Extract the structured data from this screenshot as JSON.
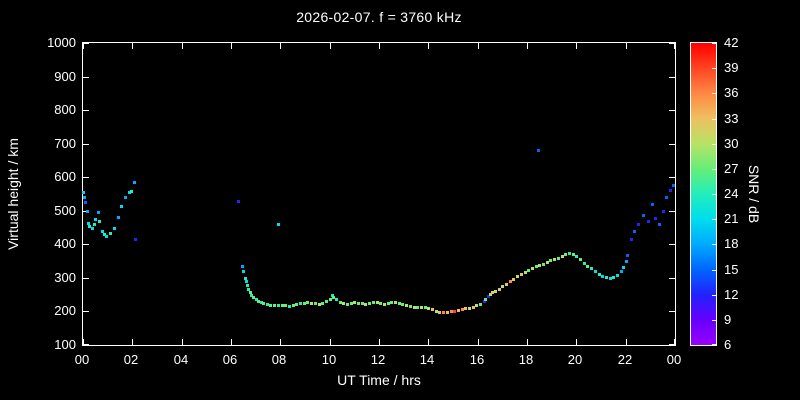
{
  "title": "2026-02-07. f = 3760 kHz",
  "colors": {
    "background": "#000000",
    "axes": "#ffffff",
    "text": "#ffffff"
  },
  "chart_data": {
    "type": "scatter",
    "title": "2026-02-07. f = 3760 kHz",
    "xlabel": "UT Time / hrs",
    "ylabel": "Virtual height / km",
    "colorbar_label": "SNR / dB",
    "xlim": [
      0,
      24
    ],
    "ylim": [
      100,
      1000
    ],
    "x_tick_labels": [
      "00",
      "02",
      "04",
      "06",
      "08",
      "10",
      "12",
      "14",
      "16",
      "18",
      "20",
      "22",
      "00"
    ],
    "x_tick_values": [
      0,
      2,
      4,
      6,
      8,
      10,
      12,
      14,
      16,
      18,
      20,
      22,
      24
    ],
    "y_tick_values": [
      100,
      200,
      300,
      400,
      500,
      600,
      700,
      800,
      900,
      1000
    ],
    "snr_tick_values": [
      6,
      9,
      12,
      15,
      18,
      21,
      24,
      27,
      30,
      33,
      36,
      39,
      42
    ],
    "snr_range": [
      6,
      42
    ],
    "grid": false,
    "colormap": [
      {
        "snr": 6,
        "color": "#9900ff"
      },
      {
        "snr": 9,
        "color": "#6600ff"
      },
      {
        "snr": 12,
        "color": "#2222ff"
      },
      {
        "snr": 15,
        "color": "#0066ff"
      },
      {
        "snr": 18,
        "color": "#00aaff"
      },
      {
        "snr": 21,
        "color": "#00ddee"
      },
      {
        "snr": 24,
        "color": "#22eebb"
      },
      {
        "snr": 27,
        "color": "#66ee77"
      },
      {
        "snr": 30,
        "color": "#b8e266"
      },
      {
        "snr": 33,
        "color": "#eec060"
      },
      {
        "snr": 36,
        "color": "#ff8844"
      },
      {
        "snr": 39,
        "color": "#ff4422"
      },
      {
        "snr": 42,
        "color": "#ff0000"
      }
    ],
    "points": [
      [
        0.0,
        555,
        21
      ],
      [
        0.05,
        540,
        18
      ],
      [
        0.1,
        525,
        15
      ],
      [
        0.15,
        500,
        18
      ],
      [
        0.2,
        465,
        21
      ],
      [
        0.25,
        455,
        24
      ],
      [
        0.35,
        450,
        21
      ],
      [
        0.45,
        460,
        24
      ],
      [
        0.5,
        475,
        21
      ],
      [
        0.6,
        495,
        18
      ],
      [
        0.65,
        470,
        24
      ],
      [
        0.75,
        440,
        21
      ],
      [
        0.85,
        430,
        24
      ],
      [
        0.95,
        425,
        21
      ],
      [
        1.1,
        435,
        24
      ],
      [
        1.25,
        450,
        21
      ],
      [
        1.4,
        480,
        18
      ],
      [
        1.55,
        515,
        21
      ],
      [
        1.7,
        540,
        18
      ],
      [
        1.85,
        555,
        21
      ],
      [
        1.95,
        560,
        24
      ],
      [
        2.05,
        585,
        18
      ],
      [
        2.1,
        415,
        12
      ],
      [
        6.3,
        530,
        12
      ],
      [
        6.45,
        335,
        18
      ],
      [
        6.5,
        320,
        21
      ],
      [
        6.55,
        300,
        24
      ],
      [
        6.6,
        290,
        21
      ],
      [
        6.65,
        278,
        24
      ],
      [
        6.7,
        268,
        24
      ],
      [
        6.75,
        258,
        27
      ],
      [
        6.8,
        250,
        24
      ],
      [
        6.9,
        242,
        27
      ],
      [
        7.0,
        236,
        24
      ],
      [
        7.1,
        232,
        27
      ],
      [
        7.2,
        228,
        24
      ],
      [
        7.9,
        460,
        21
      ],
      [
        7.3,
        226,
        27
      ],
      [
        7.45,
        222,
        24
      ],
      [
        7.6,
        220,
        27
      ],
      [
        7.75,
        219,
        27
      ],
      [
        7.9,
        218,
        24
      ],
      [
        8.05,
        218,
        27
      ],
      [
        8.2,
        220,
        27
      ],
      [
        8.35,
        216,
        24
      ],
      [
        8.5,
        218,
        27
      ],
      [
        8.65,
        221,
        27
      ],
      [
        8.8,
        224,
        24
      ],
      [
        8.95,
        226,
        27
      ],
      [
        9.1,
        228,
        27
      ],
      [
        9.25,
        226,
        30
      ],
      [
        9.4,
        224,
        27
      ],
      [
        9.55,
        222,
        30
      ],
      [
        9.7,
        226,
        27
      ],
      [
        9.85,
        230,
        27
      ],
      [
        10.0,
        236,
        27
      ],
      [
        10.1,
        250,
        24
      ],
      [
        10.15,
        244,
        27
      ],
      [
        10.25,
        238,
        24
      ],
      [
        10.4,
        228,
        27
      ],
      [
        10.55,
        224,
        30
      ],
      [
        10.7,
        222,
        27
      ],
      [
        10.85,
        224,
        27
      ],
      [
        11.0,
        227,
        30
      ],
      [
        11.15,
        226,
        27
      ],
      [
        11.3,
        224,
        27
      ],
      [
        11.45,
        222,
        30
      ],
      [
        11.6,
        224,
        27
      ],
      [
        11.75,
        227,
        27
      ],
      [
        11.9,
        228,
        30
      ],
      [
        12.05,
        226,
        27
      ],
      [
        12.2,
        223,
        30
      ],
      [
        12.35,
        224,
        27
      ],
      [
        12.5,
        227,
        27
      ],
      [
        12.65,
        228,
        30
      ],
      [
        12.8,
        226,
        27
      ],
      [
        12.95,
        222,
        27
      ],
      [
        13.1,
        219,
        30
      ],
      [
        13.25,
        216,
        27
      ],
      [
        13.4,
        214,
        30
      ],
      [
        13.55,
        212,
        27
      ],
      [
        13.7,
        213,
        30
      ],
      [
        13.85,
        214,
        27
      ],
      [
        14.0,
        210,
        30
      ],
      [
        14.15,
        206,
        33
      ],
      [
        14.3,
        202,
        30
      ],
      [
        14.45,
        199,
        33
      ],
      [
        14.6,
        197,
        36
      ],
      [
        14.75,
        199,
        33
      ],
      [
        14.9,
        200,
        36
      ],
      [
        15.05,
        202,
        39
      ],
      [
        15.2,
        204,
        33
      ],
      [
        15.35,
        207,
        36
      ],
      [
        15.5,
        209,
        33
      ],
      [
        15.65,
        211,
        30
      ],
      [
        15.8,
        214,
        33
      ],
      [
        15.95,
        218,
        30
      ],
      [
        16.1,
        222,
        27
      ],
      [
        16.25,
        230,
        9
      ],
      [
        16.3,
        238,
        27
      ],
      [
        16.4,
        246,
        12
      ],
      [
        16.5,
        252,
        30
      ],
      [
        16.6,
        258,
        33
      ],
      [
        16.7,
        262,
        30
      ],
      [
        16.85,
        268,
        33
      ],
      [
        17.0,
        275,
        30
      ],
      [
        17.15,
        282,
        33
      ],
      [
        17.3,
        290,
        36
      ],
      [
        17.45,
        297,
        33
      ],
      [
        17.6,
        305,
        30
      ],
      [
        17.75,
        312,
        33
      ],
      [
        17.9,
        318,
        30
      ],
      [
        18.05,
        325,
        27
      ],
      [
        18.2,
        330,
        30
      ],
      [
        18.35,
        334,
        27
      ],
      [
        18.5,
        338,
        30
      ],
      [
        18.65,
        342,
        27
      ],
      [
        18.8,
        347,
        30
      ],
      [
        18.95,
        352,
        27
      ],
      [
        19.1,
        356,
        30
      ],
      [
        19.25,
        360,
        27
      ],
      [
        19.4,
        365,
        30
      ],
      [
        19.55,
        370,
        27
      ],
      [
        19.7,
        374,
        24
      ],
      [
        19.85,
        372,
        27
      ],
      [
        18.45,
        680,
        15
      ],
      [
        20.0,
        364,
        24
      ],
      [
        20.15,
        355,
        27
      ],
      [
        20.3,
        345,
        24
      ],
      [
        20.45,
        336,
        27
      ],
      [
        20.6,
        328,
        24
      ],
      [
        20.75,
        320,
        21
      ],
      [
        20.9,
        313,
        24
      ],
      [
        21.05,
        307,
        21
      ],
      [
        21.2,
        302,
        24
      ],
      [
        21.35,
        300,
        21
      ],
      [
        21.5,
        303,
        24
      ],
      [
        21.65,
        310,
        21
      ],
      [
        21.8,
        320,
        18
      ],
      [
        21.9,
        333,
        21
      ],
      [
        22.0,
        350,
        18
      ],
      [
        22.05,
        368,
        15
      ],
      [
        22.2,
        415,
        12
      ],
      [
        22.35,
        440,
        15
      ],
      [
        22.5,
        462,
        12
      ],
      [
        22.7,
        488,
        15
      ],
      [
        22.9,
        470,
        12
      ],
      [
        23.05,
        520,
        15
      ],
      [
        23.2,
        478,
        12
      ],
      [
        23.35,
        462,
        15
      ],
      [
        23.5,
        498,
        12
      ],
      [
        23.65,
        540,
        15
      ],
      [
        23.8,
        562,
        12
      ],
      [
        23.9,
        578,
        15
      ]
    ]
  }
}
